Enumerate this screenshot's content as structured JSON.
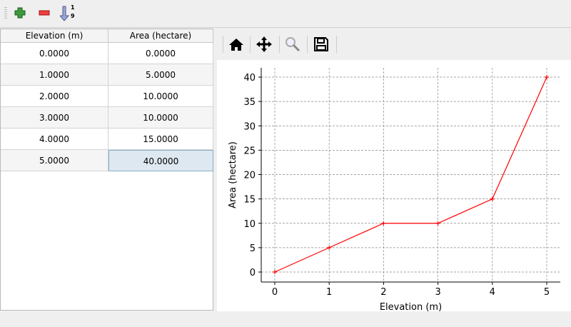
{
  "toolbar": {
    "items": [
      {
        "name": "add-row",
        "icon": "plus-icon"
      },
      {
        "name": "remove-row",
        "icon": "minus-icon"
      },
      {
        "name": "sort",
        "icon": "sort-ascending-icon",
        "label_top": "1",
        "label_bottom": "9"
      }
    ]
  },
  "table": {
    "columns": [
      "Elevation (m)",
      "Area (hectare)"
    ],
    "rows": [
      [
        "0.0000",
        "0.0000"
      ],
      [
        "1.0000",
        "5.0000"
      ],
      [
        "2.0000",
        "10.0000"
      ],
      [
        "3.0000",
        "10.0000"
      ],
      [
        "4.0000",
        "15.0000"
      ],
      [
        "5.0000",
        "40.0000"
      ]
    ],
    "selected": {
      "row": 5,
      "col": 1
    }
  },
  "plot_toolbar": [
    "home-icon",
    "pan-icon",
    "zoom-icon",
    "save-icon"
  ],
  "chart_data": {
    "type": "line",
    "x": [
      0,
      1,
      2,
      3,
      4,
      5
    ],
    "series": [
      {
        "values": [
          0,
          5,
          10,
          10,
          15,
          40
        ],
        "color": "#ff0000",
        "marker": "+"
      }
    ],
    "xlabel": "Elevation (m)",
    "ylabel": "Area (hectare)",
    "xlim": [
      0,
      5
    ],
    "ylim": [
      0,
      40
    ],
    "xticks": [
      "0",
      "1",
      "2",
      "3",
      "4",
      "5"
    ],
    "yticks": [
      "0",
      "5",
      "10",
      "15",
      "20",
      "25",
      "30",
      "35",
      "40"
    ],
    "grid": true
  }
}
